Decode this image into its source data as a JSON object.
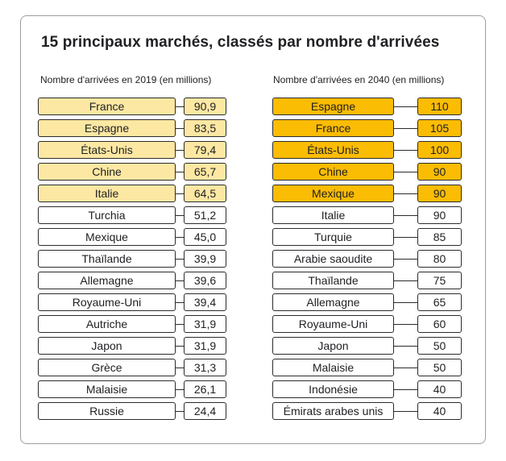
{
  "title": "15 principaux marchés, classés par nombre d'arrivées",
  "colors": {
    "highlight_2019": "#fde8a3",
    "highlight_2040": "#fbbc04",
    "border": "#2b2b2b"
  },
  "chart_data": [
    {
      "type": "table",
      "title": "Nombre d'arrivées en 2019 (en millions)",
      "categories": [
        "France",
        "Espagne",
        "États-Unis",
        "Chine",
        "Italie",
        "Turchia",
        "Mexique",
        "Thaïlande",
        "Allemagne",
        "Royaume-Uni",
        "Autriche",
        "Japon",
        "Grèce",
        "Malaisie",
        "Russie"
      ],
      "values": [
        "90,9",
        "83,5",
        "79,4",
        "65,7",
        "64,5",
        "51,2",
        "45,0",
        "39,9",
        "39,6",
        "39,4",
        "31,9",
        "31,9",
        "31,3",
        "26,1",
        "24,4"
      ],
      "highlighted_count": 5
    },
    {
      "type": "table",
      "title": "Nombre d'arrivées en 2040 (en millions)",
      "categories": [
        "Espagne",
        "France",
        "États-Unis",
        "Chine",
        "Mexique",
        "Italie",
        "Turquie",
        "Arabie saoudite",
        "Thaïlande",
        "Allemagne",
        "Royaume-Uni",
        "Japon",
        "Malaisie",
        "Indonésie",
        "Émirats arabes unis"
      ],
      "values": [
        "110",
        "105",
        "100",
        "90",
        "90",
        "90",
        "85",
        "80",
        "75",
        "65",
        "60",
        "50",
        "50",
        "40",
        "40"
      ],
      "highlighted_count": 5
    }
  ]
}
